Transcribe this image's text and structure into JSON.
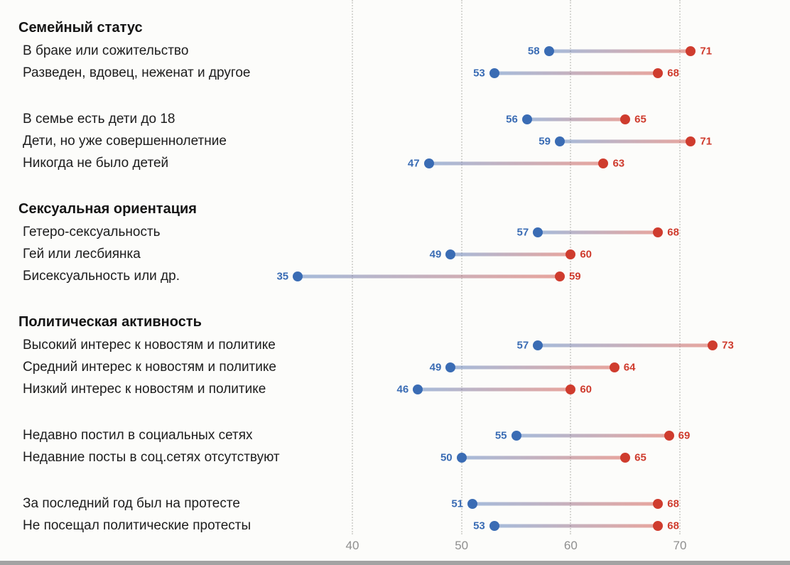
{
  "chart_data": {
    "type": "dumbbell",
    "title": "",
    "xlabel": "",
    "ylabel": "",
    "axis": {
      "ticks": [
        40,
        50,
        60,
        70
      ],
      "xlim": [
        33,
        76
      ],
      "grid": "vertical-dotted"
    },
    "series": [
      {
        "name": "start",
        "color": "#3a6cb4",
        "connector": "rgba(61,108,180,0.45)"
      },
      {
        "name": "end",
        "color": "#cf3c2e",
        "connector": "rgba(207,60,46,0.45)"
      }
    ],
    "groups": [
      {
        "header": "Семейный статус",
        "rows": [
          {
            "label": "В браке или сожительство",
            "start": 58,
            "end": 71
          },
          {
            "label": "Разведен, вдовец, неженат и другое",
            "start": 53,
            "end": 68
          },
          {
            "label": "В семье есть дети до 18",
            "start": 56,
            "end": 65,
            "gap_before": true
          },
          {
            "label": "Дети, но уже совершеннолетние",
            "start": 59,
            "end": 71
          },
          {
            "label": "Никогда не было детей",
            "start": 47,
            "end": 63
          }
        ]
      },
      {
        "header": "Сексуальная ориентация",
        "rows": [
          {
            "label": "Гетеро-сексуальность",
            "start": 57,
            "end": 68
          },
          {
            "label": "Гей или лесбиянка",
            "start": 49,
            "end": 60
          },
          {
            "label": "Бисексуальность или др.",
            "start": 35,
            "end": 59
          }
        ]
      },
      {
        "header": "Политическая активность",
        "rows": [
          {
            "label": "Высокий интерес к новостям и политике",
            "start": 57,
            "end": 73
          },
          {
            "label": "Средний интерес к новостям и политике",
            "start": 49,
            "end": 64
          },
          {
            "label": "Низкий интерес к новостям и политике",
            "start": 46,
            "end": 60
          },
          {
            "label": "Недавно постил в социальных сетях",
            "start": 55,
            "end": 69,
            "gap_before": true
          },
          {
            "label": "Недавние посты в соц.сетях отсутствуют",
            "start": 50,
            "end": 65
          },
          {
            "label": "За последний год был на протесте",
            "start": 51,
            "end": 68,
            "gap_before": true
          },
          {
            "label": "Не посещал политические протесты",
            "start": 53,
            "end": 68
          }
        ]
      }
    ]
  }
}
